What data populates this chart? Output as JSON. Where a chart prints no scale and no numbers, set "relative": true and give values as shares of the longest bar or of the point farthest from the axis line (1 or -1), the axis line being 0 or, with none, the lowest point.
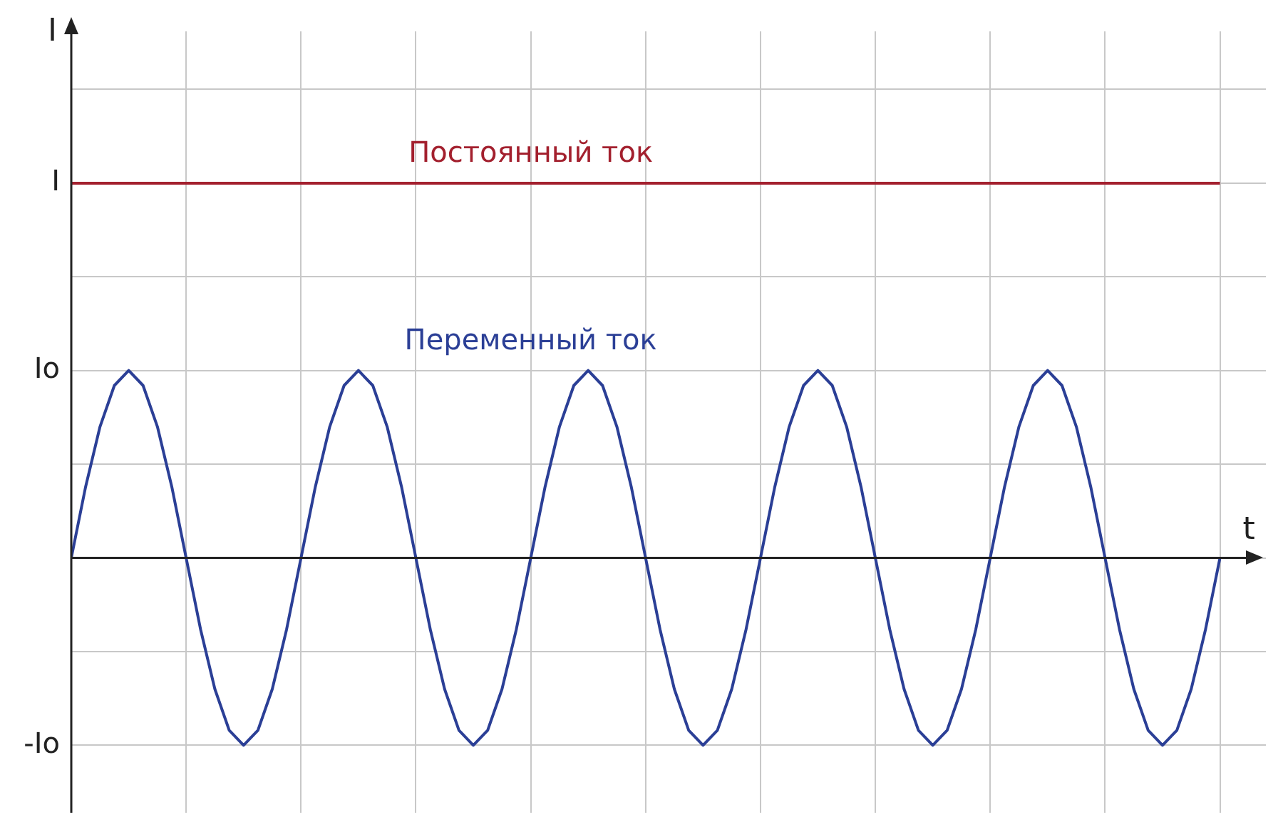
{
  "chart_data": {
    "type": "line",
    "xlabel": "t",
    "ylabel": "I",
    "relative": true,
    "categories": [
      null,
      null,
      null,
      null,
      null,
      null,
      null,
      null,
      null,
      null,
      null,
      null,
      null,
      null,
      null,
      null,
      null,
      null,
      null,
      null,
      null,
      null,
      null,
      null,
      null,
      null,
      null,
      null,
      null,
      null,
      null,
      null,
      null,
      null,
      null,
      null,
      null,
      null,
      null,
      null,
      null,
      null,
      null,
      null,
      null,
      null,
      null,
      null,
      null,
      null,
      null,
      null,
      null,
      null,
      null,
      null,
      null,
      null,
      null,
      null,
      null,
      null,
      null,
      null,
      null,
      null,
      null,
      null,
      null,
      null,
      null,
      null,
      null,
      null,
      null,
      null,
      null,
      null,
      null,
      null,
      null
    ],
    "annotations": [
      "I",
      "Io",
      "-Io"
    ],
    "grid": true,
    "legend": false,
    "marker": "none",
    "line_style": "solid",
    "series": [
      {
        "name": "Постоянный ток",
        "color": "#a3202e",
        "values": [
          1,
          1,
          1,
          1,
          1,
          1,
          1,
          1,
          1,
          1,
          1,
          1,
          1,
          1,
          1,
          1,
          1,
          1,
          1,
          1,
          1,
          1,
          1,
          1,
          1,
          1,
          1,
          1,
          1,
          1,
          1,
          1,
          1,
          1,
          1,
          1,
          1,
          1,
          1,
          1,
          1,
          1,
          1,
          1,
          1,
          1,
          1,
          1,
          1,
          1,
          1,
          1,
          1,
          1,
          1,
          1,
          1,
          1,
          1,
          1,
          1,
          1,
          1,
          1,
          1,
          1,
          1,
          1,
          1,
          1,
          1,
          1,
          1,
          1,
          1,
          1,
          1,
          1,
          1,
          1,
          1
        ]
      },
      {
        "name": "Переменный ток",
        "color": "#2b3f96",
        "values": [
          0,
          0.19,
          0.35,
          0.46,
          0.5,
          0.46,
          0.35,
          0.19,
          0,
          -0.19,
          -0.35,
          -0.46,
          -0.5,
          -0.46,
          -0.35,
          -0.19,
          0,
          0.19,
          0.35,
          0.46,
          0.5,
          0.46,
          0.35,
          0.19,
          0,
          -0.19,
          -0.35,
          -0.46,
          -0.5,
          -0.46,
          -0.35,
          -0.19,
          0,
          0.19,
          0.35,
          0.46,
          0.5,
          0.46,
          0.35,
          0.19,
          0,
          -0.19,
          -0.35,
          -0.46,
          -0.5,
          -0.46,
          -0.35,
          -0.19,
          0,
          0.19,
          0.35,
          0.46,
          0.5,
          0.46,
          0.35,
          0.19,
          0,
          -0.19,
          -0.35,
          -0.46,
          -0.5,
          -0.46,
          -0.35,
          -0.19,
          0,
          0.19,
          0.35,
          0.46,
          0.5,
          0.46,
          0.35,
          0.19,
          0,
          -0.19,
          -0.35,
          -0.46,
          -0.5,
          -0.46,
          -0.35,
          -0.19,
          0
        ]
      }
    ]
  }
}
